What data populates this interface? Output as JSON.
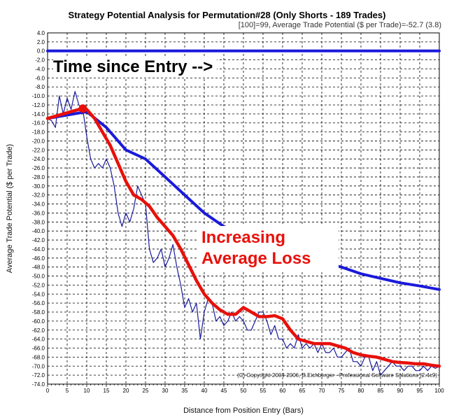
{
  "chart_data": {
    "type": "line",
    "title": "Strategy Potential Analysis for Permutation#28 (Only Shorts - 189 Trades)",
    "subtitle": "[100]=99,   Average Trade Potential ($ per Trade)=-52.7 (3.8)",
    "xlabel": "Distance from Position Entry (Bars)",
    "ylabel": "Average Trade Potential ($ per Trade)",
    "xlim": [
      0,
      100
    ],
    "ylim": [
      -74,
      4
    ],
    "x_ticks": [
      0,
      5,
      10,
      15,
      20,
      25,
      30,
      35,
      40,
      45,
      50,
      55,
      60,
      65,
      70,
      75,
      80,
      85,
      90,
      95,
      100
    ],
    "y_ticks": [
      "4.0",
      "2.0",
      "0.0",
      "-2.0",
      "-4.0",
      "-6.0",
      "-8.0",
      "-10.0",
      "-12.0",
      "-14.0",
      "-16.0",
      "-18.0",
      "-20.0",
      "-22.0",
      "-24.0",
      "-26.0",
      "-28.0",
      "-30.0",
      "-32.0",
      "-34.0",
      "-36.0",
      "-38.0",
      "-40.0",
      "-42.0",
      "-44.0",
      "-46.0",
      "-48.0",
      "-50.0",
      "-52.0",
      "-54.0",
      "-56.0",
      "-58.0",
      "-60.0",
      "-62.0",
      "-64.0",
      "-66.0",
      "-68.0",
      "-70.0",
      "-72.0",
      "-74.0"
    ],
    "grid": true,
    "colors": {
      "zero_line": "#1a1adb",
      "avg_blue": "#1a1adb",
      "raw_thin": "#1a1a9c",
      "avg_red": "#e8100a"
    },
    "series": [
      {
        "key": "zero",
        "x": [
          0,
          100
        ],
        "y": [
          0,
          0
        ]
      },
      {
        "key": "raw",
        "x": [
          0,
          1,
          2,
          3,
          4,
          5,
          6,
          7,
          8,
          9,
          10,
          11,
          12,
          13,
          14,
          15,
          16,
          17,
          18,
          19,
          20,
          21,
          22,
          23,
          24,
          25,
          26,
          27,
          28,
          29,
          30,
          31,
          32,
          33,
          34,
          35,
          36,
          37,
          38,
          39,
          40,
          41,
          42,
          43,
          44,
          45,
          46,
          47,
          48,
          49,
          50,
          51,
          52,
          53,
          54,
          55,
          56,
          57,
          58,
          59,
          60,
          61,
          62,
          63,
          64,
          65,
          66,
          67,
          68,
          69,
          70,
          71,
          72,
          73,
          74,
          75,
          76,
          77,
          78,
          79,
          80,
          81,
          82,
          83,
          84,
          85,
          86,
          87,
          88,
          89,
          90,
          91,
          92,
          93,
          94,
          95,
          96,
          97,
          98,
          99,
          100
        ],
        "y": [
          -15,
          -15.5,
          -17,
          -10,
          -14,
          -10.5,
          -13,
          -9,
          -12,
          -13,
          -19,
          -24,
          -26,
          -25,
          -26,
          -24,
          -26,
          -30,
          -36,
          -39,
          -36,
          -38,
          -35,
          -30,
          -32,
          -34,
          -44,
          -47,
          -46,
          -44,
          -48,
          -46,
          -43,
          -48,
          -52,
          -57,
          -55,
          -58,
          -56,
          -64,
          -58,
          -55,
          -56,
          -60,
          -59,
          -61,
          -60,
          -58,
          -60,
          -59,
          -60,
          -62,
          -62,
          -60,
          -58,
          -58,
          -60,
          -63,
          -61,
          -64,
          -64,
          -66,
          -65,
          -66,
          -63,
          -66,
          -65,
          -66,
          -65,
          -67,
          -65,
          -67,
          -67,
          -66,
          -68,
          -68,
          -67,
          -66,
          -69,
          -69,
          -70,
          -68,
          -68,
          -71,
          -69,
          -72,
          -71,
          -70,
          -69,
          -70,
          -70,
          -71,
          -70,
          -70,
          -71,
          -71,
          -70,
          -71,
          -70,
          -70.5,
          -70
        ]
      },
      {
        "key": "avg_blue",
        "x": [
          0,
          10,
          15,
          20,
          25,
          30,
          35,
          40,
          45,
          50,
          55,
          60,
          65,
          70,
          75,
          80,
          85,
          90,
          95,
          100
        ],
        "y": [
          -15,
          -13.5,
          -17,
          -22,
          -24,
          -28,
          -32,
          -36,
          -39,
          -41,
          -43,
          -45,
          -46,
          -47,
          -48,
          -49.5,
          -50.5,
          -51.5,
          -52.2,
          -53
        ]
      },
      {
        "key": "avg_red",
        "x": [
          0,
          2,
          4,
          6,
          8,
          9,
          10,
          12,
          14,
          16,
          18,
          20,
          22,
          24,
          26,
          28,
          30,
          32,
          34,
          36,
          38,
          40,
          42,
          44,
          46,
          48,
          50,
          52,
          54,
          56,
          58,
          60,
          62,
          64,
          66,
          68,
          70,
          72,
          74,
          76,
          78,
          80,
          82,
          84,
          86,
          88,
          90,
          92,
          94,
          96,
          98,
          100
        ],
        "y": [
          -15,
          -14.5,
          -14,
          -13.5,
          -13,
          -12.8,
          -13,
          -15,
          -18,
          -21,
          -25,
          -29,
          -32,
          -33,
          -34.5,
          -37,
          -39,
          -41,
          -44,
          -47.5,
          -51,
          -54,
          -56,
          -57.5,
          -58.5,
          -58.5,
          -57,
          -58,
          -59,
          -59,
          -58.8,
          -59.5,
          -62,
          -64,
          -64.5,
          -65,
          -65,
          -65,
          -65.5,
          -66,
          -67,
          -67.5,
          -67.8,
          -68,
          -68.5,
          -69,
          -69.2,
          -69.3,
          -69.5,
          -69.5,
          -69.8,
          -70
        ]
      }
    ],
    "marker": {
      "x": 9,
      "y": -12.8
    },
    "annotations": {
      "time_since_entry": "Time since Entry -->",
      "increasing_line1": "Increasing",
      "increasing_line2": "Average Loss"
    },
    "copyright": "(C) Copyright  2004-2006, B.Eichberger - Professional Software Solutions (2.4c9)"
  }
}
